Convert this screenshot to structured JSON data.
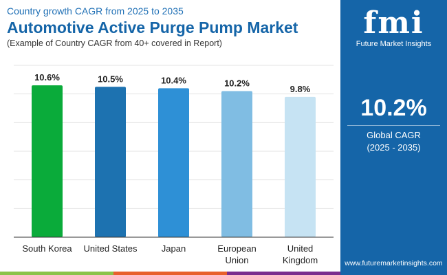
{
  "header": {
    "subtitle": "Country growth CAGR from 2025 to 2035",
    "title": "Automotive Active Purge Pump Market",
    "note": "(Example of Country CAGR from 40+ covered in Report)"
  },
  "panel": {
    "logo_text": "fmi",
    "logo_name": "Future Market Insights",
    "value": "10.2%",
    "label1": "Global CAGR",
    "label2": "(2025 - 2035)",
    "url": "www.futuremarketinsights.com",
    "bg": "#1565a8"
  },
  "chart_data": {
    "type": "bar",
    "categories": [
      "South Korea",
      "United States",
      "Japan",
      "European Union",
      "United Kingdom"
    ],
    "category_lines": [
      [
        "South Korea"
      ],
      [
        "United States"
      ],
      [
        "Japan"
      ],
      [
        "European",
        "Union"
      ],
      [
        "United",
        "Kingdom"
      ]
    ],
    "values": [
      10.6,
      10.5,
      10.4,
      10.2,
      9.8
    ],
    "data_labels": [
      "10.6%",
      "10.5%",
      "10.4%",
      "10.2%",
      "9.8%"
    ],
    "colors": [
      "#0aab3a",
      "#1d72b0",
      "#2e90d6",
      "#80bde3",
      "#c6e3f3"
    ],
    "ylim": [
      0,
      12
    ],
    "grid": true,
    "title": "",
    "xlabel": "",
    "ylabel": ""
  }
}
